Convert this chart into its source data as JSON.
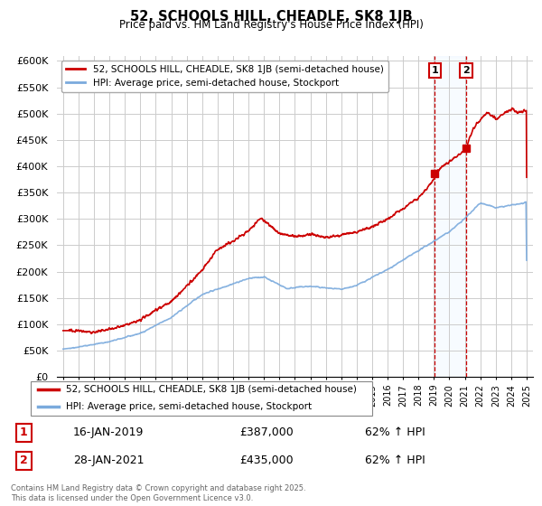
{
  "title": "52, SCHOOLS HILL, CHEADLE, SK8 1JB",
  "subtitle": "Price paid vs. HM Land Registry's House Price Index (HPI)",
  "ylabel_ticks": [
    "£0",
    "£50K",
    "£100K",
    "£150K",
    "£200K",
    "£250K",
    "£300K",
    "£350K",
    "£400K",
    "£450K",
    "£500K",
    "£550K",
    "£600K"
  ],
  "ytick_values": [
    0,
    50000,
    100000,
    150000,
    200000,
    250000,
    300000,
    350000,
    400000,
    450000,
    500000,
    550000,
    600000
  ],
  "legend_line1": "52, SCHOOLS HILL, CHEADLE, SK8 1JB (semi-detached house)",
  "legend_line2": "HPI: Average price, semi-detached house, Stockport",
  "line1_color": "#cc0000",
  "line2_color": "#7aaadd",
  "marker1_date": 2019.05,
  "marker2_date": 2021.08,
  "marker1_price": 387000,
  "marker2_price": 435000,
  "note1_date": "16-JAN-2019",
  "note1_price": "£387,000",
  "note1_hpi": "62% ↑ HPI",
  "note2_date": "28-JAN-2021",
  "note2_price": "£435,000",
  "note2_hpi": "62% ↑ HPI",
  "footer": "Contains HM Land Registry data © Crown copyright and database right 2025.\nThis data is licensed under the Open Government Licence v3.0.",
  "bg_color": "#ffffff",
  "grid_color": "#cccccc",
  "shade_color": "#ddeeff",
  "vline_color": "#cc0000"
}
